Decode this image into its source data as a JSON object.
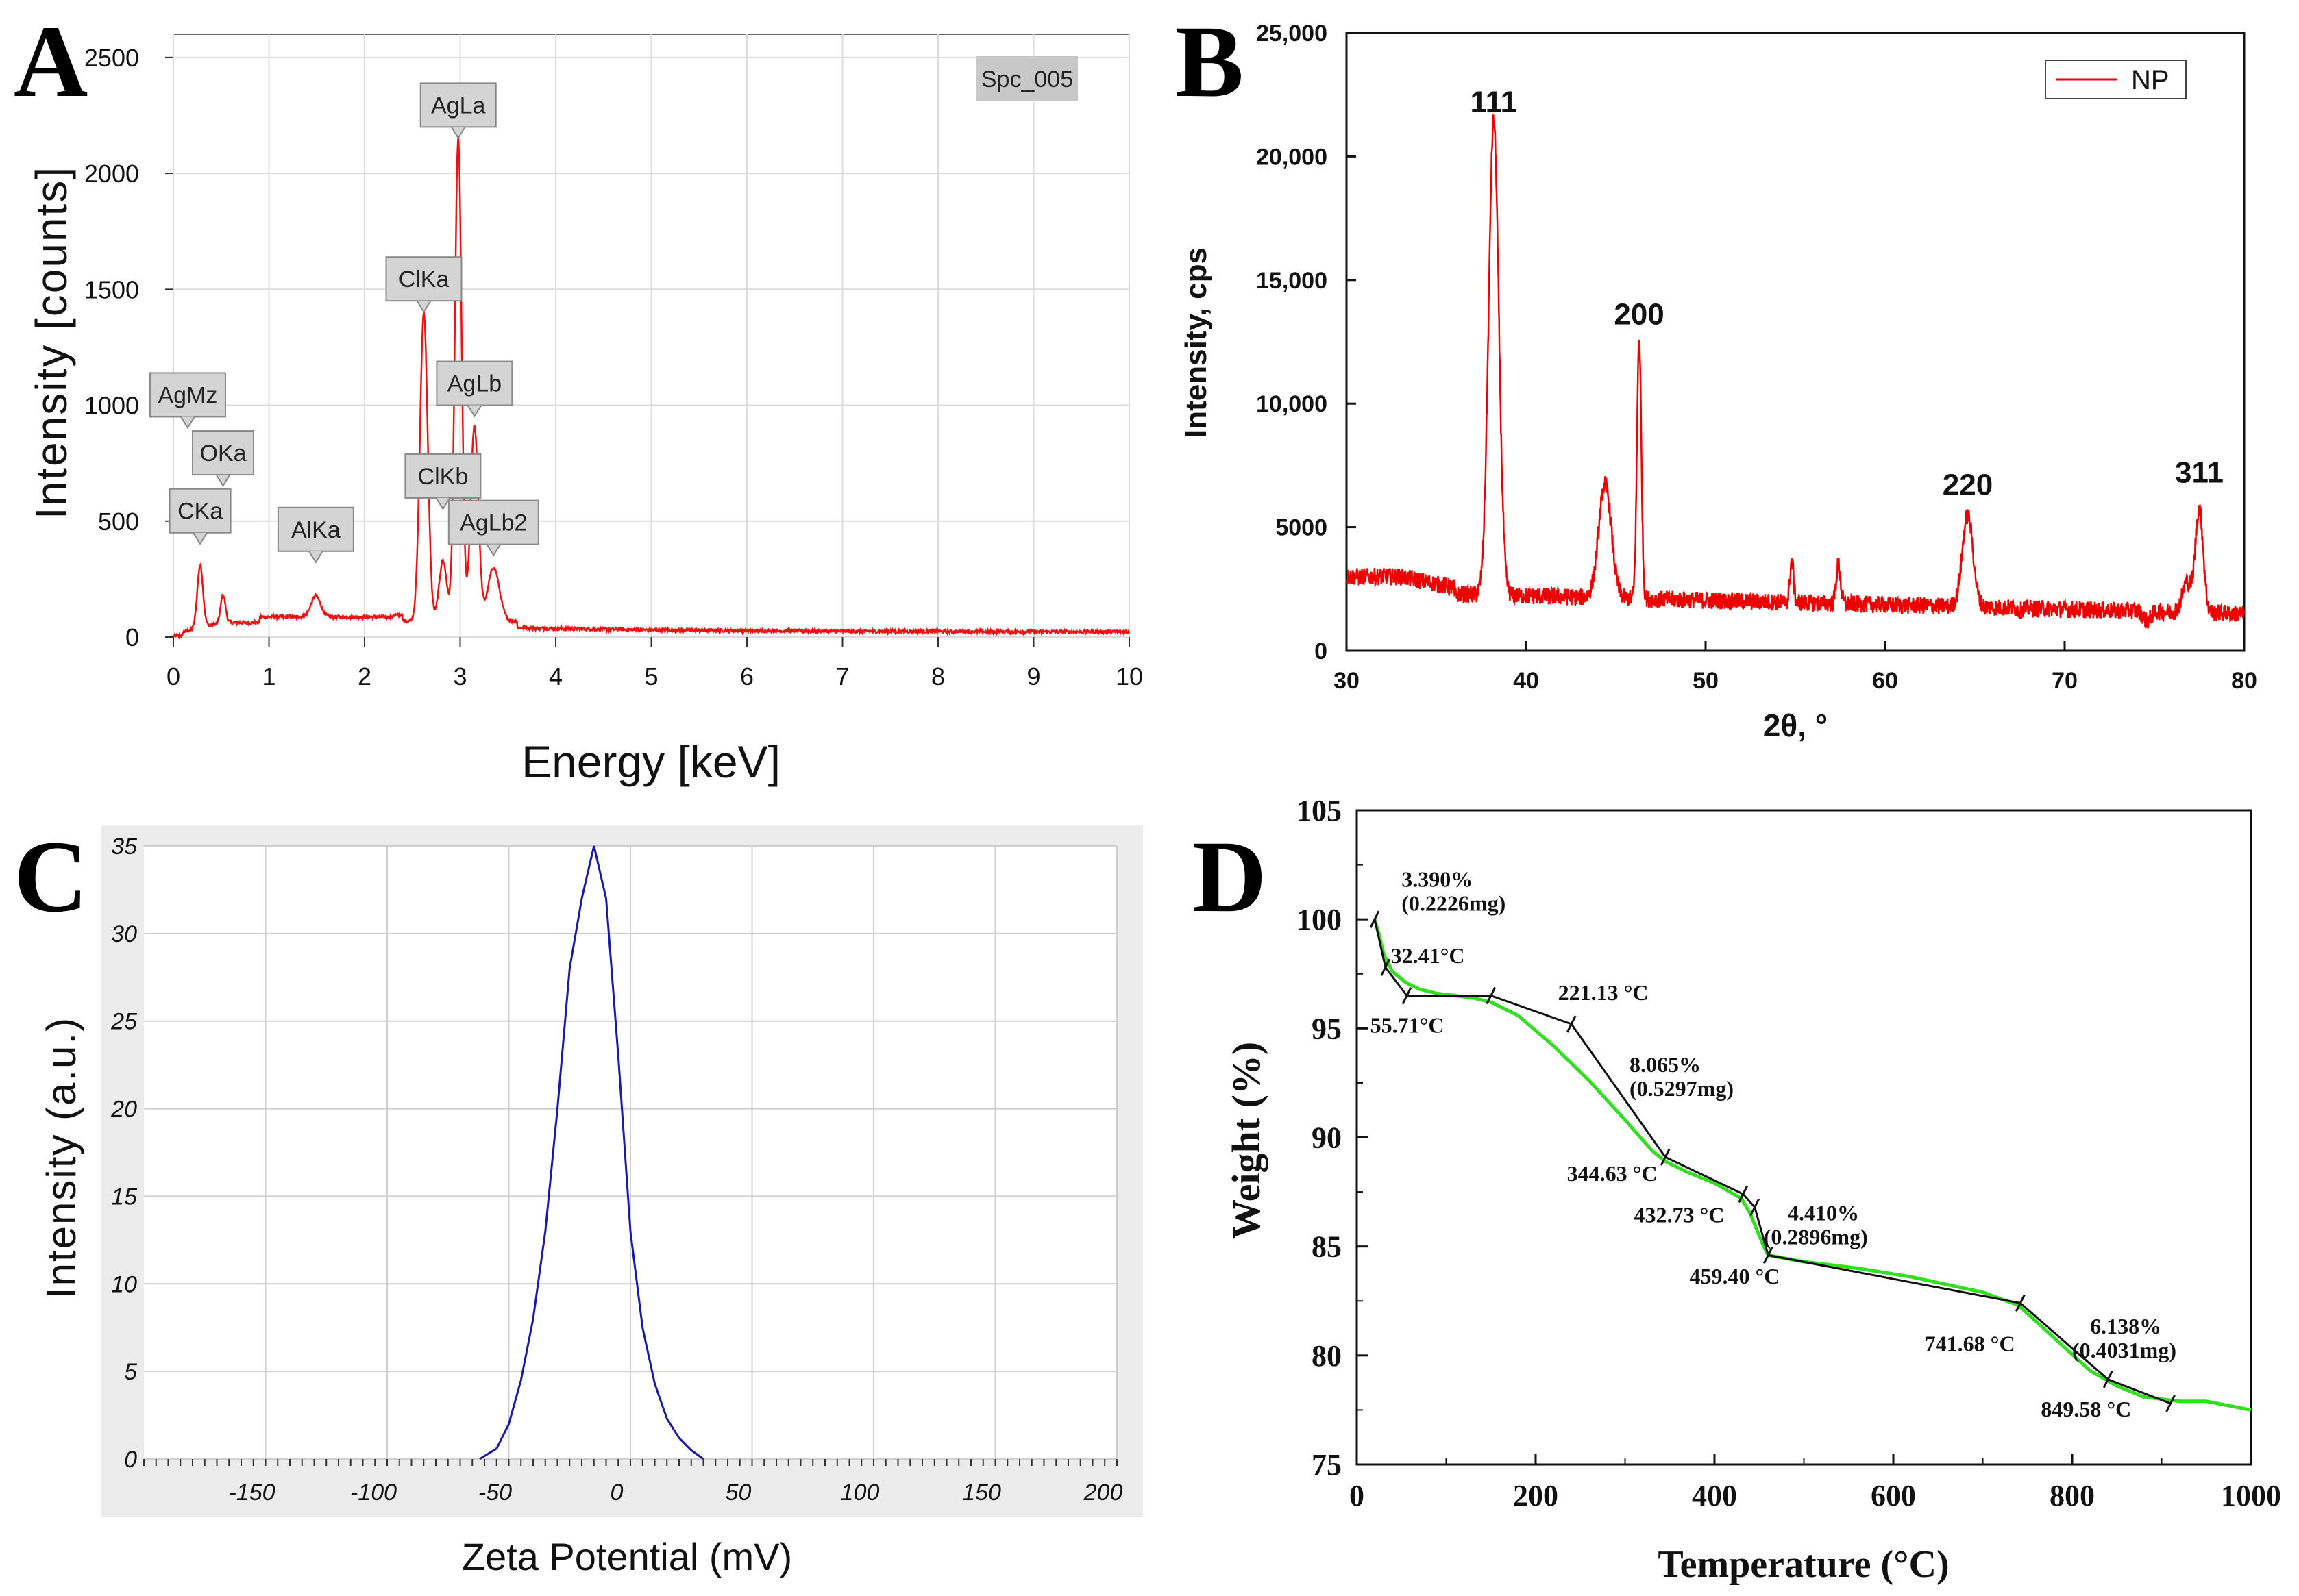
{
  "chart_data": [
    {
      "panel": "A",
      "type": "line",
      "title": "",
      "badge": "Spc_005",
      "xlabel": "Energy [keV]",
      "ylabel": "Intensity [counts]",
      "xlim": [
        0,
        10
      ],
      "ylim": [
        0,
        2600
      ],
      "xticks": [
        0,
        1,
        2,
        3,
        4,
        5,
        6,
        7,
        8,
        9,
        10
      ],
      "xtick_labels": [
        "0",
        "1",
        "2",
        "3",
        "4",
        "5",
        "6",
        "7",
        "8",
        "9",
        "10"
      ],
      "yticks": [
        0,
        500,
        1000,
        1500,
        2000,
        2500
      ],
      "ytick_labels": [
        "0",
        "500",
        "1000",
        "1500",
        "2000",
        "2500"
      ],
      "grid": true,
      "line_color": "#ee1111",
      "peaks": [
        {
          "x": 0.28,
          "y": 270,
          "w": 0.03
        },
        {
          "x": 0.52,
          "y": 120,
          "w": 0.025
        },
        {
          "x": 1.49,
          "y": 90,
          "w": 0.05
        },
        {
          "x": 2.62,
          "y": 1330,
          "w": 0.04
        },
        {
          "x": 2.82,
          "y": 260,
          "w": 0.04
        },
        {
          "x": 2.98,
          "y": 2080,
          "w": 0.035
        },
        {
          "x": 3.15,
          "y": 840,
          "w": 0.04
        },
        {
          "x": 3.35,
          "y": 230,
          "w": 0.06
        }
      ],
      "peak_labels": [
        {
          "text": "AgLa",
          "x": 2.98,
          "y": 2200
        },
        {
          "text": "ClKa",
          "x": 2.62,
          "y": 1450
        },
        {
          "text": "AgLb",
          "x": 3.15,
          "y": 1000
        },
        {
          "text": "ClKb",
          "x": 2.82,
          "y": 600
        },
        {
          "text": "AgLb2",
          "x": 3.35,
          "y": 400
        },
        {
          "text": "AgMz",
          "x": 0.15,
          "y": 950
        },
        {
          "text": "OKa",
          "x": 0.52,
          "y": 700
        },
        {
          "text": "CKa",
          "x": 0.28,
          "y": 450
        },
        {
          "text": "AlKa",
          "x": 1.49,
          "y": 370
        }
      ]
    },
    {
      "panel": "B",
      "type": "line",
      "title": "",
      "xlabel": "2θ, °",
      "ylabel": "Intensity, cps",
      "xlim": [
        30,
        80
      ],
      "ylim": [
        0,
        25000
      ],
      "xticks": [
        30,
        40,
        50,
        60,
        70,
        80
      ],
      "xtick_labels": [
        "30",
        "40",
        "50",
        "60",
        "70",
        "80"
      ],
      "yticks": [
        0,
        5000,
        10000,
        15000,
        20000,
        25000
      ],
      "ytick_labels": [
        "0",
        "5000",
        "10,000",
        "15,000",
        "20,000",
        "25,000"
      ],
      "grid": false,
      "line_color": "#ee0000",
      "legend": [
        {
          "name": "NP",
          "color": "#ee0000"
        }
      ],
      "legend_position": "top-right",
      "peaks": [
        {
          "x": 38.2,
          "y": 21500,
          "w": 0.28
        },
        {
          "x": 44.4,
          "y": 6900,
          "w": 0.35
        },
        {
          "x": 46.3,
          "y": 12900,
          "w": 0.12
        },
        {
          "x": 54.8,
          "y": 4000,
          "w": 0.1
        },
        {
          "x": 57.4,
          "y": 3900,
          "w": 0.12
        },
        {
          "x": 64.6,
          "y": 6000,
          "w": 0.3
        },
        {
          "x": 67.5,
          "y": 2200,
          "w": 0.1
        },
        {
          "x": 74.6,
          "y": 1900,
          "w": 0.2
        },
        {
          "x": 76.8,
          "y": 3500,
          "w": 0.25
        },
        {
          "x": 77.5,
          "y": 6500,
          "w": 0.22
        }
      ],
      "peak_labels": [
        {
          "text": "111",
          "x": 38.2,
          "y": 21800
        },
        {
          "text": "200",
          "x": 46.3,
          "y": 13200
        },
        {
          "text": "220",
          "x": 64.6,
          "y": 6300
        },
        {
          "text": "311",
          "x": 77.5,
          "y": 6800
        }
      ]
    },
    {
      "panel": "C",
      "type": "line",
      "title": "",
      "xlabel": "Zeta Potential (mV)",
      "ylabel": "Intensity (a.u.)",
      "xlim": [
        -200,
        200
      ],
      "ylim": [
        0,
        35
      ],
      "xticks": [
        -150,
        -100,
        -50,
        0,
        50,
        100,
        150,
        200
      ],
      "xtick_labels": [
        "-150",
        "-100",
        "-50",
        "0",
        "50",
        "100",
        "150",
        "200"
      ],
      "yticks": [
        0,
        5,
        10,
        15,
        20,
        25,
        30,
        35
      ],
      "ytick_labels": [
        "0",
        "5",
        "10",
        "15",
        "20",
        "25",
        "30",
        "35"
      ],
      "grid": true,
      "line_color": "#1a1aaa",
      "x": [
        -62,
        -55,
        -50,
        -45,
        -40,
        -35,
        -30,
        -25,
        -20,
        -15,
        -10,
        -5,
        0,
        5,
        10,
        15,
        20,
        25,
        30
      ],
      "values": [
        0,
        0.6,
        2,
        4.5,
        8,
        13,
        20,
        28,
        32,
        35,
        32,
        23,
        13,
        7.5,
        4.3,
        2.3,
        1.2,
        0.5,
        0
      ]
    },
    {
      "panel": "D",
      "type": "line",
      "title": "",
      "xlabel": "Temperature (°C)",
      "ylabel": "Weight (%)",
      "xlim": [
        0,
        1000
      ],
      "ylim": [
        75,
        105
      ],
      "xticks": [
        0,
        200,
        400,
        600,
        800,
        1000
      ],
      "xtick_labels": [
        "0",
        "200",
        "400",
        "600",
        "800",
        "1000"
      ],
      "yticks": [
        75,
        80,
        85,
        90,
        95,
        100,
        105
      ],
      "ytick_labels": [
        "75",
        "80",
        "85",
        "90",
        "95",
        "100",
        "105"
      ],
      "grid": false,
      "line_color": "#33dd22",
      "tangent_color": "#111111",
      "x": [
        20,
        25,
        30,
        40,
        55,
        70,
        90,
        110,
        130,
        150,
        180,
        220,
        260,
        300,
        330,
        345,
        370,
        400,
        430,
        440,
        455,
        460,
        500,
        560,
        620,
        700,
        740,
        780,
        820,
        850,
        880,
        920,
        950,
        1000
      ],
      "values": [
        100,
        99.3,
        98.4,
        97.6,
        97.1,
        96.8,
        96.6,
        96.5,
        96.4,
        96.2,
        95.6,
        94.2,
        92.6,
        90.8,
        89.4,
        88.9,
        88.4,
        87.9,
        87.2,
        86.5,
        85,
        84.6,
        84.3,
        84,
        83.6,
        82.9,
        82.3,
        80.8,
        79.3,
        78.6,
        78.1,
        77.9,
        77.9,
        77.5
      ],
      "tangent_points": [
        {
          "x": 20,
          "y": 100
        },
        {
          "x": 32,
          "y": 97.8
        },
        {
          "x": 56,
          "y": 96.5
        },
        {
          "x": 150,
          "y": 96.5
        },
        {
          "x": 240,
          "y": 95.2
        },
        {
          "x": 345,
          "y": 89.1
        },
        {
          "x": 432,
          "y": 87.4
        },
        {
          "x": 445,
          "y": 86.8
        },
        {
          "x": 460,
          "y": 84.6
        },
        {
          "x": 742,
          "y": 82.4
        },
        {
          "x": 840,
          "y": 78.9
        },
        {
          "x": 910,
          "y": 77.8
        }
      ],
      "annotations": [
        {
          "text": "3.390%",
          "x": 50,
          "y": 101.5
        },
        {
          "text": "(0.2226mg)",
          "x": 50,
          "y": 100.4
        },
        {
          "text": "32.41°C",
          "x": 38,
          "y": 98
        },
        {
          "text": "55.71°C",
          "x": 15,
          "y": 94.8
        },
        {
          "text": "221.13 °C",
          "x": 225,
          "y": 96.3
        },
        {
          "text": "8.065%",
          "x": 305,
          "y": 93
        },
        {
          "text": "(0.5297mg)",
          "x": 305,
          "y": 91.9
        },
        {
          "text": "344.63 °C",
          "x": 235,
          "y": 88
        },
        {
          "text": "432.73 °C",
          "x": 310,
          "y": 86.1
        },
        {
          "text": "4.410%",
          "x": 482,
          "y": 86.2
        },
        {
          "text": "(0.2896mg)",
          "x": 455,
          "y": 85.1
        },
        {
          "text": "459.40 °C",
          "x": 372,
          "y": 83.3
        },
        {
          "text": "741.68 °C",
          "x": 635,
          "y": 80.2
        },
        {
          "text": "6.138%",
          "x": 820,
          "y": 81
        },
        {
          "text": "(0.4031mg)",
          "x": 800,
          "y": 79.9
        },
        {
          "text": "849.58 °C",
          "x": 765,
          "y": 77.2
        }
      ]
    }
  ],
  "panel_labels": [
    "A",
    "B",
    "C",
    "D"
  ]
}
